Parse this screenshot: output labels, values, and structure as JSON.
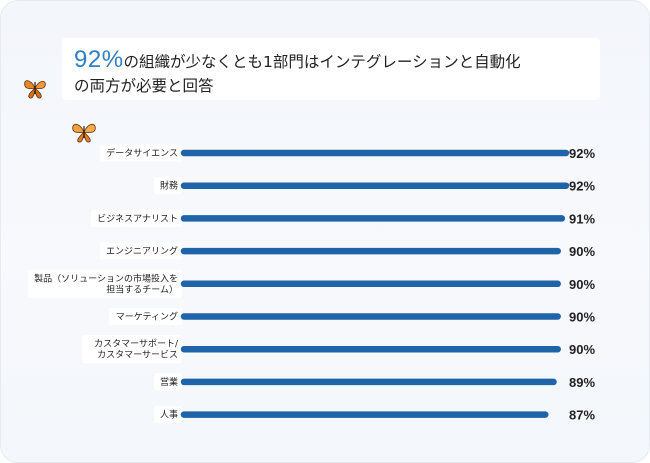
{
  "title": {
    "highlight": "92%",
    "line1_rest": "の組織が少なくとも1部門はインテグレーションと自動化",
    "line2": "の両方が必要と回答"
  },
  "decorations": [
    "butterfly-icon",
    "butterfly-icon"
  ],
  "colors": {
    "bar": "#1f64a8",
    "highlight": "#2f7fc4",
    "label_bg": "#ffffff"
  },
  "chart_data": {
    "type": "bar",
    "orientation": "horizontal",
    "categories": [
      [
        "データサイエンス"
      ],
      [
        "財務"
      ],
      [
        "ビジネスアナリスト"
      ],
      [
        "エンジニアリング"
      ],
      [
        "製品（ソリューションの市場投入を",
        "担当するチーム）"
      ],
      [
        "マーケティング"
      ],
      [
        "カスタマーサポート/",
        "カスタマーサービス"
      ],
      [
        "営業"
      ],
      [
        "人事"
      ]
    ],
    "values": [
      92,
      92,
      91,
      90,
      90,
      90,
      90,
      89,
      87
    ],
    "value_labels": [
      "92%",
      "92%",
      "91%",
      "90%",
      "90%",
      "90%",
      "90%",
      "89%",
      "87%"
    ],
    "xlim": [
      0,
      92
    ],
    "grid": false,
    "legend": "none"
  }
}
